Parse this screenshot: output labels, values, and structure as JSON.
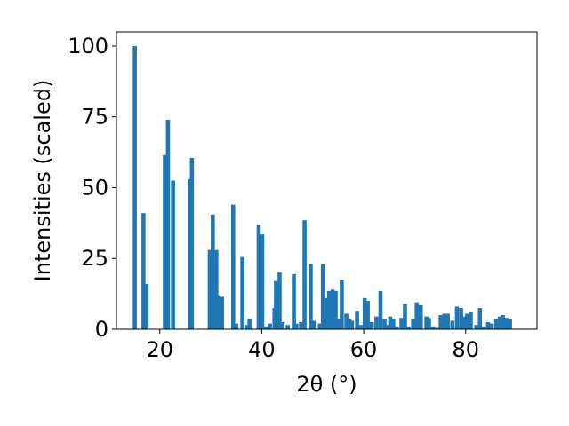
{
  "chart_data": {
    "type": "bar",
    "xlabel": "2θ (°)",
    "ylabel": "Intensities (scaled)",
    "xlim": [
      11.5,
      94
    ],
    "ylim": [
      0,
      105
    ],
    "x_ticks": [
      20,
      40,
      60,
      80
    ],
    "y_ticks": [
      0,
      25,
      50,
      75,
      100
    ],
    "grid": false,
    "bar_color": "#1f77b4",
    "bar_width": 0.8,
    "series": [
      {
        "x": [
          15.1,
          16.8,
          17.4,
          21.0,
          21.6,
          22.6,
          26.0,
          26.3,
          29.8,
          30.4,
          31.1,
          31.5,
          32.2,
          34.4,
          35.0,
          36.2,
          37.2,
          37.6,
          39.4,
          40.1,
          40.9,
          41.6,
          42.5,
          42.8,
          43.5,
          44.1,
          45.1,
          46.3,
          46.8,
          47.7,
          48.4,
          49.6,
          50.2,
          51.4,
          52.0,
          52.7,
          53.2,
          53.9,
          54.5,
          55.2,
          55.7,
          56.6,
          57.2,
          57.7,
          58.7,
          59.4,
          60.2,
          60.8,
          61.6,
          62.5,
          63.3,
          64.1,
          64.6,
          65.2,
          65.8,
          66.5,
          67.4,
          68.1,
          68.8,
          69.7,
          70.4,
          71.2,
          72.3,
          72.8,
          73.6,
          74.4,
          75.1,
          75.8,
          76.5,
          77.4,
          78.3,
          79.1,
          79.7,
          80.3,
          81.0,
          82.1,
          82.8,
          83.6,
          84.4,
          85.1,
          86.0,
          86.7,
          87.3,
          88.0,
          88.7
        ],
        "values": [
          100,
          41,
          16,
          61.5,
          74,
          52.5,
          53,
          60.5,
          28,
          40.5,
          28,
          12,
          11.5,
          44,
          2,
          25.5,
          1.5,
          3.5,
          37,
          33.5,
          1,
          2,
          7.5,
          17,
          20,
          2.5,
          1.5,
          19.5,
          2,
          2.5,
          38.5,
          23,
          3,
          2,
          23,
          11,
          13.5,
          14,
          13.5,
          3.5,
          17.5,
          5.5,
          3.5,
          3,
          6.5,
          1.5,
          11,
          10,
          2.5,
          4.5,
          13.5,
          3.5,
          1.5,
          4.5,
          3.5,
          1,
          4,
          9,
          1,
          3.5,
          9.5,
          8.5,
          4.5,
          4,
          1,
          0.5,
          5,
          5.5,
          5.5,
          3,
          8,
          7.5,
          4.5,
          5.5,
          6,
          1.5,
          7.5,
          1,
          2.5,
          2,
          3.5,
          4.5,
          5,
          4,
          3.5
        ]
      }
    ]
  }
}
